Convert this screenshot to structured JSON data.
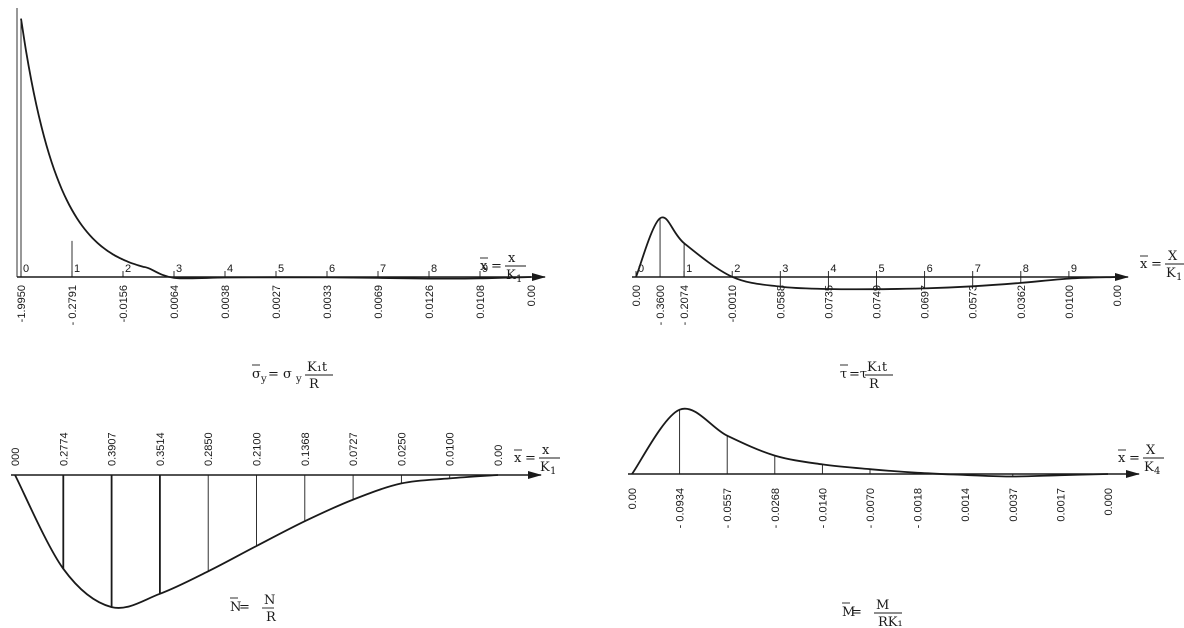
{
  "chart_data": [
    {
      "type": "line",
      "panel": "top-left",
      "x_ticks": [
        "0",
        "1",
        "2",
        "3",
        "4",
        "5",
        "6",
        "7",
        "8",
        "9"
      ],
      "x": [
        0,
        1,
        2,
        3,
        4,
        5,
        6,
        7,
        8,
        9,
        10
      ],
      "y_labels": [
        "-1.9950",
        "- 0.2791",
        "-0.0156",
        "0.0064",
        "0.0038",
        "0.0027",
        "0.0033",
        "0.0069",
        "0.0126",
        "0.0108",
        "0.00"
      ],
      "values": [
        -1.995,
        -0.2791,
        -0.0156,
        0.0064,
        0.0038,
        0.0027,
        0.0033,
        0.0069,
        0.0126,
        0.0108,
        0.0
      ],
      "axis_label": {
        "lhs": "x",
        "num": "x",
        "den": "K",
        "sub": "1"
      },
      "formula": {
        "lhs": "σ",
        "lhs_sub": "y",
        "eq": " = σ",
        "eq_sub": "y",
        "num": "K₁t",
        "den": "R"
      },
      "ylim": [
        -2.0,
        0.05
      ]
    },
    {
      "type": "line",
      "panel": "top-right",
      "x_ticks": [
        "0",
        "1",
        "2",
        "3",
        "4",
        "5",
        "6",
        "7",
        "8",
        "9"
      ],
      "x": [
        0,
        0.5,
        1,
        2,
        3,
        4,
        5,
        6,
        7,
        8,
        9,
        10
      ],
      "y_labels": [
        "0.00",
        "- 0.3600",
        "- 0.2074",
        "-0.0010",
        "0.0588",
        "0.0735",
        "0.0749",
        "0.0697",
        "0.0573",
        "0.0362",
        "0.0100",
        "0.00"
      ],
      "values": [
        0.0,
        -0.36,
        -0.2074,
        -0.001,
        0.0588,
        0.0735,
        0.0749,
        0.0697,
        0.0573,
        0.0362,
        0.01,
        0.0
      ],
      "axis_label": {
        "lhs": "x",
        "num": "X",
        "den": "K",
        "sub": "1"
      },
      "formula": {
        "lhs": "τ",
        "eq": "=τ",
        "num": "K₁t",
        "den": "R"
      },
      "ylim": [
        -0.4,
        0.1
      ]
    },
    {
      "type": "line",
      "panel": "bottom-left",
      "x": [
        0,
        1,
        2,
        3,
        4,
        5,
        6,
        7,
        8,
        9,
        10
      ],
      "y_labels": [
        "000",
        "0.2774",
        "0.3907",
        "0.3514",
        "0.2850",
        "0.2100",
        "0.1368",
        "0.0727",
        "0.0250",
        "0.0100",
        "0.00"
      ],
      "values": [
        0.0,
        0.2774,
        0.3907,
        0.3514,
        0.285,
        0.21,
        0.1368,
        0.0727,
        0.025,
        0.01,
        0.0
      ],
      "axis_label": {
        "lhs": "x",
        "num": "x",
        "den": "K",
        "sub": "1"
      },
      "formula": {
        "lhs": "N",
        "eq": " = ",
        "num": "N",
        "den": "R"
      },
      "ylim": [
        0,
        0.42
      ]
    },
    {
      "type": "line",
      "panel": "bottom-right",
      "x": [
        0,
        1,
        2,
        3,
        4,
        5,
        6,
        7,
        8,
        9,
        10
      ],
      "y_labels": [
        "0.00",
        "- 0.0934",
        "- 0.0557",
        "- 0.0268",
        "- 0.0140",
        "- 0.0070",
        "- 0.0018",
        "0.0014",
        "0.0037",
        "0.0017",
        "0.000"
      ],
      "values": [
        0.0,
        -0.0934,
        -0.0557,
        -0.0268,
        -0.014,
        -0.007,
        -0.0018,
        0.0014,
        0.0037,
        0.0017,
        0.0
      ],
      "axis_label": {
        "lhs": "x",
        "num": "X",
        "den": "K",
        "sub": "4"
      },
      "formula": {
        "lhs": "M",
        "eq": " = ",
        "num": "M",
        "den": "RK₁"
      },
      "ylim": [
        -0.1,
        0.01
      ]
    }
  ]
}
